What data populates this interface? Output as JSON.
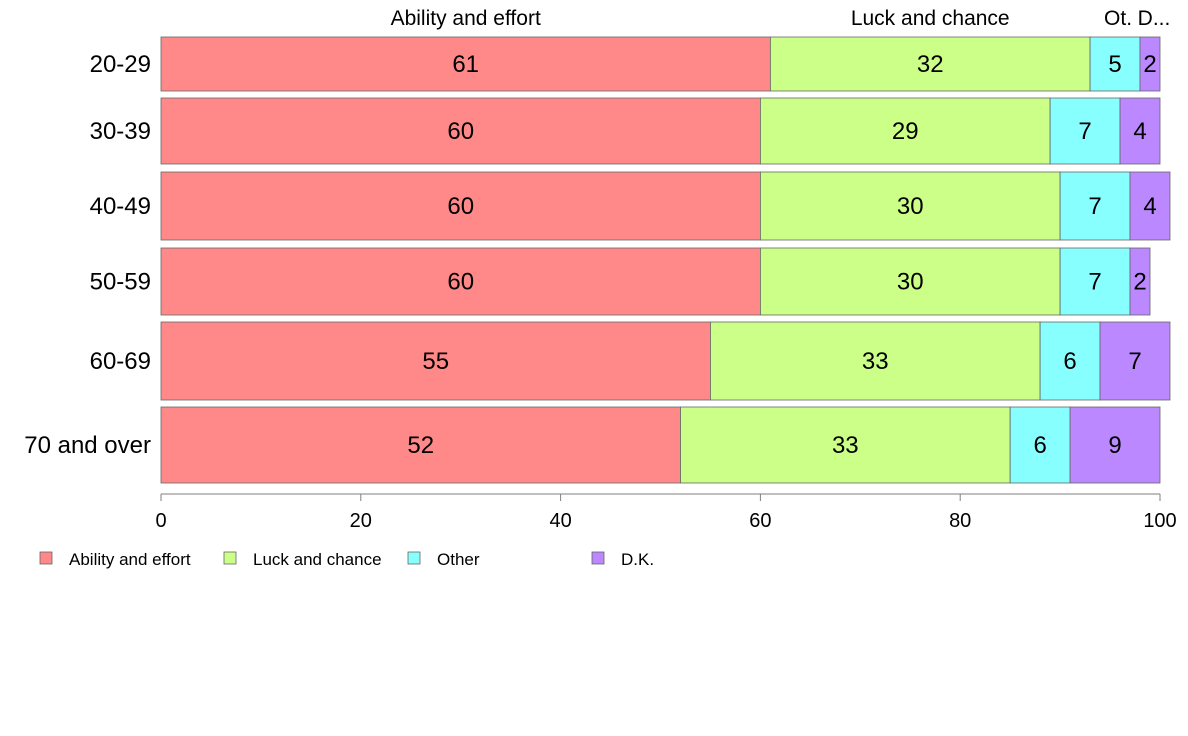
{
  "chart_data": {
    "type": "bar",
    "orientation": "horizontal",
    "stacked": true,
    "categories": [
      "20-29",
      "30-39",
      "40-49",
      "50-59",
      "60-69",
      "70 and over"
    ],
    "series": [
      {
        "name": "Ability and effort",
        "color": "#ff8888",
        "values": [
          61,
          60,
          60,
          60,
          55,
          52
        ],
        "labels": [
          "61",
          "60",
          "60",
          "60",
          "55",
          "52"
        ]
      },
      {
        "name": "Luck and chance",
        "color": "#ccff88",
        "values": [
          32,
          29,
          30,
          30,
          33,
          33
        ],
        "labels": [
          "32",
          "29",
          "30",
          "30",
          "33",
          "33"
        ]
      },
      {
        "name": "Other",
        "color": "#88ffff",
        "values": [
          5,
          7,
          7,
          7,
          6,
          6
        ],
        "labels": [
          "5",
          "7",
          "7",
          "7",
          "6",
          "6"
        ]
      },
      {
        "name": "D.K.",
        "color": "#bb88ff",
        "values": [
          2,
          4,
          4,
          2,
          7,
          9
        ],
        "labels": [
          "2",
          "4",
          "4",
          "2",
          "7",
          "9"
        ]
      }
    ],
    "top_labels": [
      "Ability and effort",
      "Luck and chance",
      "Ot.",
      "D..."
    ],
    "xlim": [
      0,
      100
    ],
    "xticks": [
      "0",
      "20",
      "40",
      "60",
      "80",
      "100"
    ],
    "legend_position": "bottom-left",
    "grid": false,
    "xlabel": "",
    "ylabel": "",
    "title": ""
  }
}
